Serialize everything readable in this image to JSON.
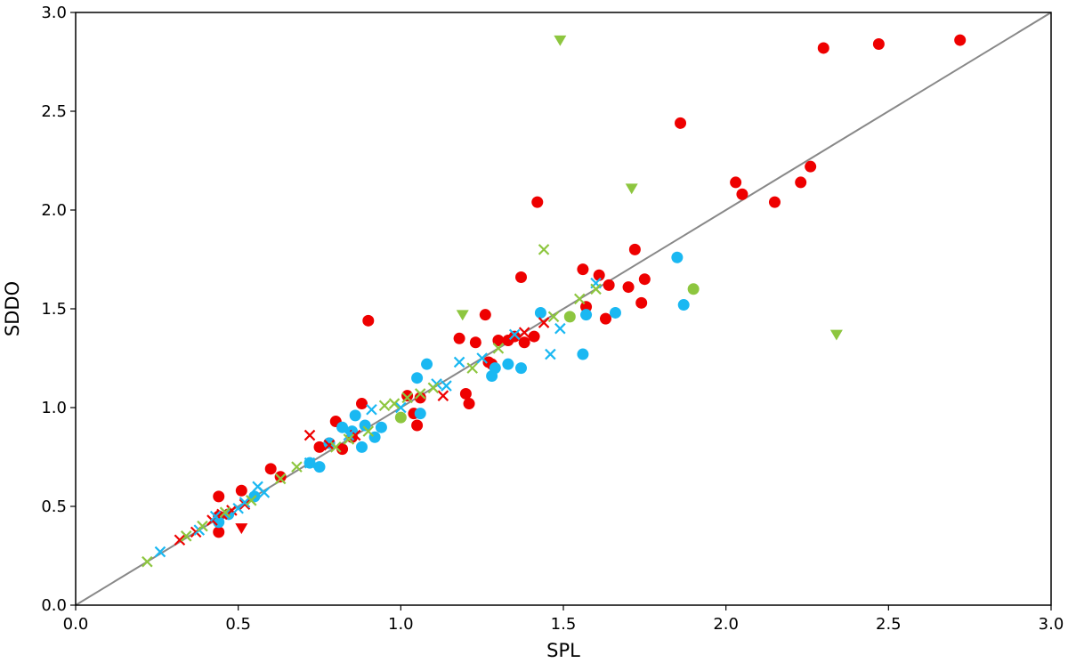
{
  "chart_data": {
    "type": "scatter",
    "xlabel": "SPL",
    "ylabel": "SDDO",
    "xlim": [
      0,
      3
    ],
    "ylim": [
      0,
      3
    ],
    "xticks": [
      "0.0",
      "0.5",
      "1.0",
      "1.5",
      "2.0",
      "2.5",
      "3.0"
    ],
    "yticks": [
      "0.0",
      "0.5",
      "1.0",
      "1.5",
      "2.0",
      "2.5",
      "3.0"
    ],
    "grid": false,
    "legend": "none",
    "reference_line": {
      "x": [
        0,
        3
      ],
      "y": [
        0,
        3
      ],
      "color": "#888888"
    },
    "series": [
      {
        "marker": "circle",
        "color": "#ee0000",
        "points": [
          [
            0.44,
            0.37
          ],
          [
            0.44,
            0.45
          ],
          [
            0.44,
            0.55
          ],
          [
            0.51,
            0.58
          ],
          [
            0.6,
            0.69
          ],
          [
            0.63,
            0.65
          ],
          [
            0.75,
            0.8
          ],
          [
            0.78,
            0.82
          ],
          [
            0.8,
            0.93
          ],
          [
            0.82,
            0.79
          ],
          [
            0.85,
            0.85
          ],
          [
            0.88,
            1.02
          ],
          [
            0.9,
            1.44
          ],
          [
            1.02,
            1.06
          ],
          [
            1.04,
            0.97
          ],
          [
            1.05,
            0.91
          ],
          [
            1.06,
            1.05
          ],
          [
            1.18,
            1.35
          ],
          [
            1.2,
            1.07
          ],
          [
            1.21,
            1.02
          ],
          [
            1.23,
            1.33
          ],
          [
            1.26,
            1.47
          ],
          [
            1.27,
            1.23
          ],
          [
            1.28,
            1.22
          ],
          [
            1.3,
            1.34
          ],
          [
            1.33,
            1.34
          ],
          [
            1.35,
            1.36
          ],
          [
            1.37,
            1.66
          ],
          [
            1.38,
            1.33
          ],
          [
            1.41,
            1.36
          ],
          [
            1.42,
            2.04
          ],
          [
            1.56,
            1.7
          ],
          [
            1.57,
            1.51
          ],
          [
            1.61,
            1.67
          ],
          [
            1.63,
            1.45
          ],
          [
            1.64,
            1.62
          ],
          [
            1.7,
            1.61
          ],
          [
            1.72,
            1.8
          ],
          [
            1.74,
            1.53
          ],
          [
            1.75,
            1.65
          ],
          [
            1.86,
            2.44
          ],
          [
            2.03,
            2.14
          ],
          [
            2.05,
            2.08
          ],
          [
            2.15,
            2.04
          ],
          [
            2.23,
            2.14
          ],
          [
            2.26,
            2.22
          ],
          [
            2.3,
            2.82
          ],
          [
            2.47,
            2.84
          ],
          [
            2.72,
            2.86
          ]
        ]
      },
      {
        "marker": "circle",
        "color": "#1ab8f2",
        "points": [
          [
            0.44,
            0.42
          ],
          [
            0.47,
            0.46
          ],
          [
            0.55,
            0.55
          ],
          [
            0.72,
            0.72
          ],
          [
            0.75,
            0.7
          ],
          [
            0.78,
            0.82
          ],
          [
            0.82,
            0.9
          ],
          [
            0.85,
            0.88
          ],
          [
            0.86,
            0.96
          ],
          [
            0.88,
            0.8
          ],
          [
            0.89,
            0.91
          ],
          [
            0.92,
            0.85
          ],
          [
            0.94,
            0.9
          ],
          [
            1.05,
            1.15
          ],
          [
            1.06,
            0.97
          ],
          [
            1.08,
            1.22
          ],
          [
            1.28,
            1.16
          ],
          [
            1.29,
            1.2
          ],
          [
            1.33,
            1.22
          ],
          [
            1.37,
            1.2
          ],
          [
            1.43,
            1.48
          ],
          [
            1.56,
            1.27
          ],
          [
            1.57,
            1.47
          ],
          [
            1.66,
            1.48
          ],
          [
            1.85,
            1.76
          ],
          [
            1.87,
            1.52
          ]
        ]
      },
      {
        "marker": "circle",
        "color": "#8dc63f",
        "points": [
          [
            1.0,
            0.95
          ],
          [
            1.52,
            1.46
          ],
          [
            1.9,
            1.6
          ]
        ]
      },
      {
        "marker": "triangle-down",
        "color": "#8dc63f",
        "points": [
          [
            1.49,
            2.86
          ],
          [
            1.19,
            1.47
          ],
          [
            1.71,
            2.11
          ],
          [
            2.34,
            1.37
          ]
        ]
      },
      {
        "marker": "triangle-down",
        "color": "#ee0000",
        "points": [
          [
            0.51,
            0.39
          ]
        ]
      },
      {
        "marker": "x",
        "color": "#ee0000",
        "points": [
          [
            0.32,
            0.33
          ],
          [
            0.37,
            0.37
          ],
          [
            0.42,
            0.43
          ],
          [
            0.45,
            0.46
          ],
          [
            0.48,
            0.48
          ],
          [
            0.52,
            0.51
          ],
          [
            0.72,
            0.86
          ],
          [
            0.78,
            0.81
          ],
          [
            0.86,
            0.86
          ],
          [
            1.13,
            1.06
          ],
          [
            1.38,
            1.38
          ],
          [
            1.44,
            1.43
          ]
        ]
      },
      {
        "marker": "x",
        "color": "#1ab8f2",
        "points": [
          [
            0.26,
            0.27
          ],
          [
            0.38,
            0.38
          ],
          [
            0.43,
            0.45
          ],
          [
            0.5,
            0.49
          ],
          [
            0.52,
            0.52
          ],
          [
            0.56,
            0.6
          ],
          [
            0.58,
            0.57
          ],
          [
            0.72,
            0.72
          ],
          [
            0.84,
            0.86
          ],
          [
            0.91,
            0.99
          ],
          [
            1.0,
            1.0
          ],
          [
            1.11,
            1.12
          ],
          [
            1.14,
            1.11
          ],
          [
            1.18,
            1.23
          ],
          [
            1.25,
            1.25
          ],
          [
            1.35,
            1.37
          ],
          [
            1.46,
            1.27
          ],
          [
            1.49,
            1.4
          ],
          [
            1.6,
            1.63
          ]
        ]
      },
      {
        "marker": "x",
        "color": "#8dc63f",
        "points": [
          [
            0.22,
            0.22
          ],
          [
            0.34,
            0.35
          ],
          [
            0.39,
            0.4
          ],
          [
            0.46,
            0.47
          ],
          [
            0.54,
            0.53
          ],
          [
            0.63,
            0.64
          ],
          [
            0.68,
            0.7
          ],
          [
            0.8,
            0.8
          ],
          [
            0.84,
            0.84
          ],
          [
            0.9,
            0.88
          ],
          [
            0.95,
            1.01
          ],
          [
            0.98,
            1.02
          ],
          [
            1.02,
            1.05
          ],
          [
            1.06,
            1.07
          ],
          [
            1.1,
            1.1
          ],
          [
            1.22,
            1.2
          ],
          [
            1.3,
            1.3
          ],
          [
            1.44,
            1.8
          ],
          [
            1.47,
            1.46
          ],
          [
            1.55,
            1.55
          ],
          [
            1.6,
            1.6
          ]
        ]
      }
    ]
  }
}
